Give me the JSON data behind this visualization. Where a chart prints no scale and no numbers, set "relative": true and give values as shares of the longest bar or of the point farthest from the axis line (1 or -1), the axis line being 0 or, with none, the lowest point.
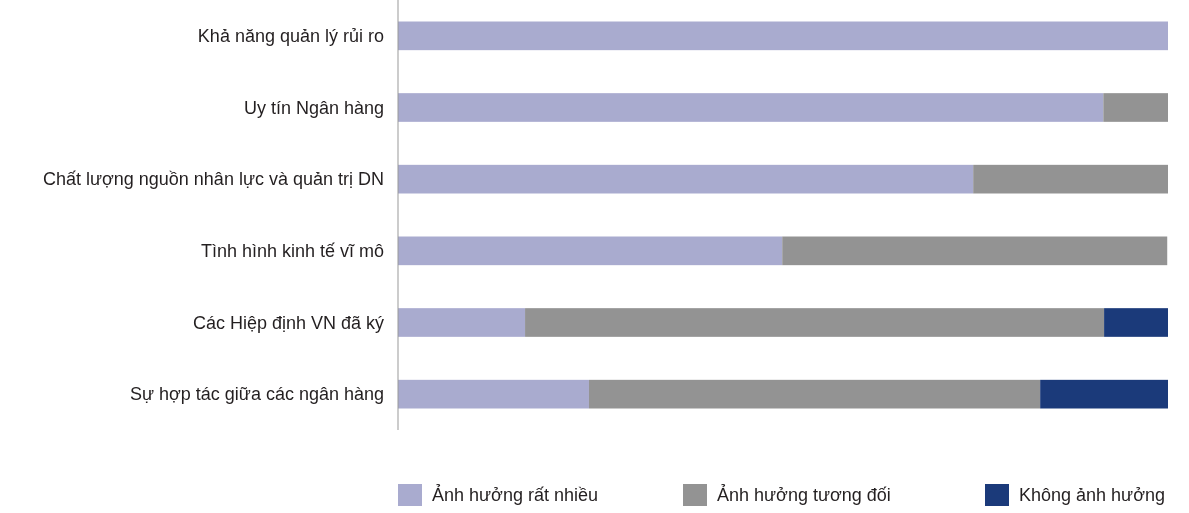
{
  "chart_data": {
    "type": "bar",
    "orientation": "horizontal",
    "stacked": true,
    "relative": true,
    "legend": "bottom",
    "categories": [
      "Khả năng quản lý rủi ro",
      "Uy tín Ngân hàng",
      "Chất lượng nguồn nhân lực và quản trị DN",
      "Tình hình kinh tế vĩ mô",
      "Các Hiệp định VN đã ký",
      "Sự hợp tác giữa các ngân hàng"
    ],
    "series": [
      {
        "name": "Ảnh hưởng rất nhiều",
        "color": "#a9abcf",
        "values": [
          1,
          0.916,
          0.747,
          0.499,
          0.165,
          0.248
        ]
      },
      {
        "name": "Ảnh hưởng tương đối",
        "color": "#939393",
        "values": [
          0,
          0.084,
          0.253,
          0.5,
          0.752,
          0.586
        ]
      },
      {
        "name": "Không ảnh hưởng",
        "color": "#1b3a7a",
        "values": [
          0,
          0,
          0,
          0,
          0.083,
          0.166
        ]
      }
    ]
  }
}
